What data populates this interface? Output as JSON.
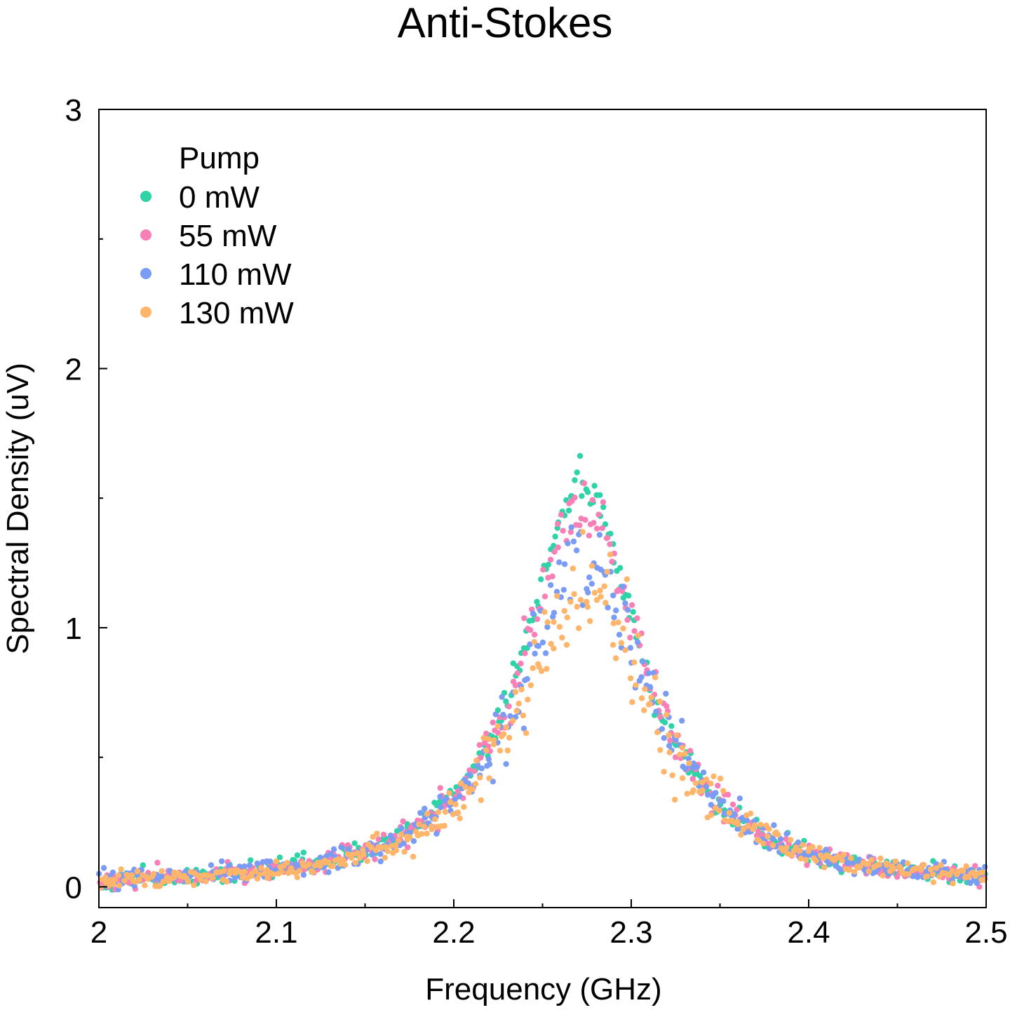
{
  "chart_data": {
    "type": "scatter",
    "title": "Anti-Stokes",
    "xlabel": "Frequency (GHz)",
    "ylabel": "Spectral Density (uV)",
    "xlim": [
      2.0,
      2.5
    ],
    "ylim": [
      -0.08,
      3.0
    ],
    "xticks": [
      "2",
      "2.1",
      "2.2",
      "2.3",
      "2.4",
      "2.5"
    ],
    "xtick_values": [
      2.0,
      2.1,
      2.2,
      2.3,
      2.4,
      2.5
    ],
    "yticks": [
      "0",
      "1",
      "2",
      "3"
    ],
    "ytick_values": [
      0,
      1,
      2,
      3
    ],
    "grid": false,
    "legend_title": "Pump",
    "legend_position": "top-left",
    "series": [
      {
        "name": "0 mW",
        "color": "#2ed3a8",
        "center_ghz": 2.272,
        "peak": 1.56,
        "hwhm_ghz": 0.04,
        "baseline": -0.01,
        "noise": 0.025
      },
      {
        "name": "55 mW",
        "color": "#f97fb7",
        "center_ghz": 2.273,
        "peak": 1.45,
        "hwhm_ghz": 0.042,
        "baseline": -0.01,
        "noise": 0.045
      },
      {
        "name": "110 mW",
        "color": "#7b9cf5",
        "center_ghz": 2.274,
        "peak": 1.27,
        "hwhm_ghz": 0.045,
        "baseline": -0.01,
        "noise": 0.07
      },
      {
        "name": "130 mW",
        "color": "#ffb56a",
        "center_ghz": 2.275,
        "peak": 1.14,
        "hwhm_ghz": 0.047,
        "baseline": -0.01,
        "noise": 0.08
      }
    ],
    "points_per_series": 400
  }
}
